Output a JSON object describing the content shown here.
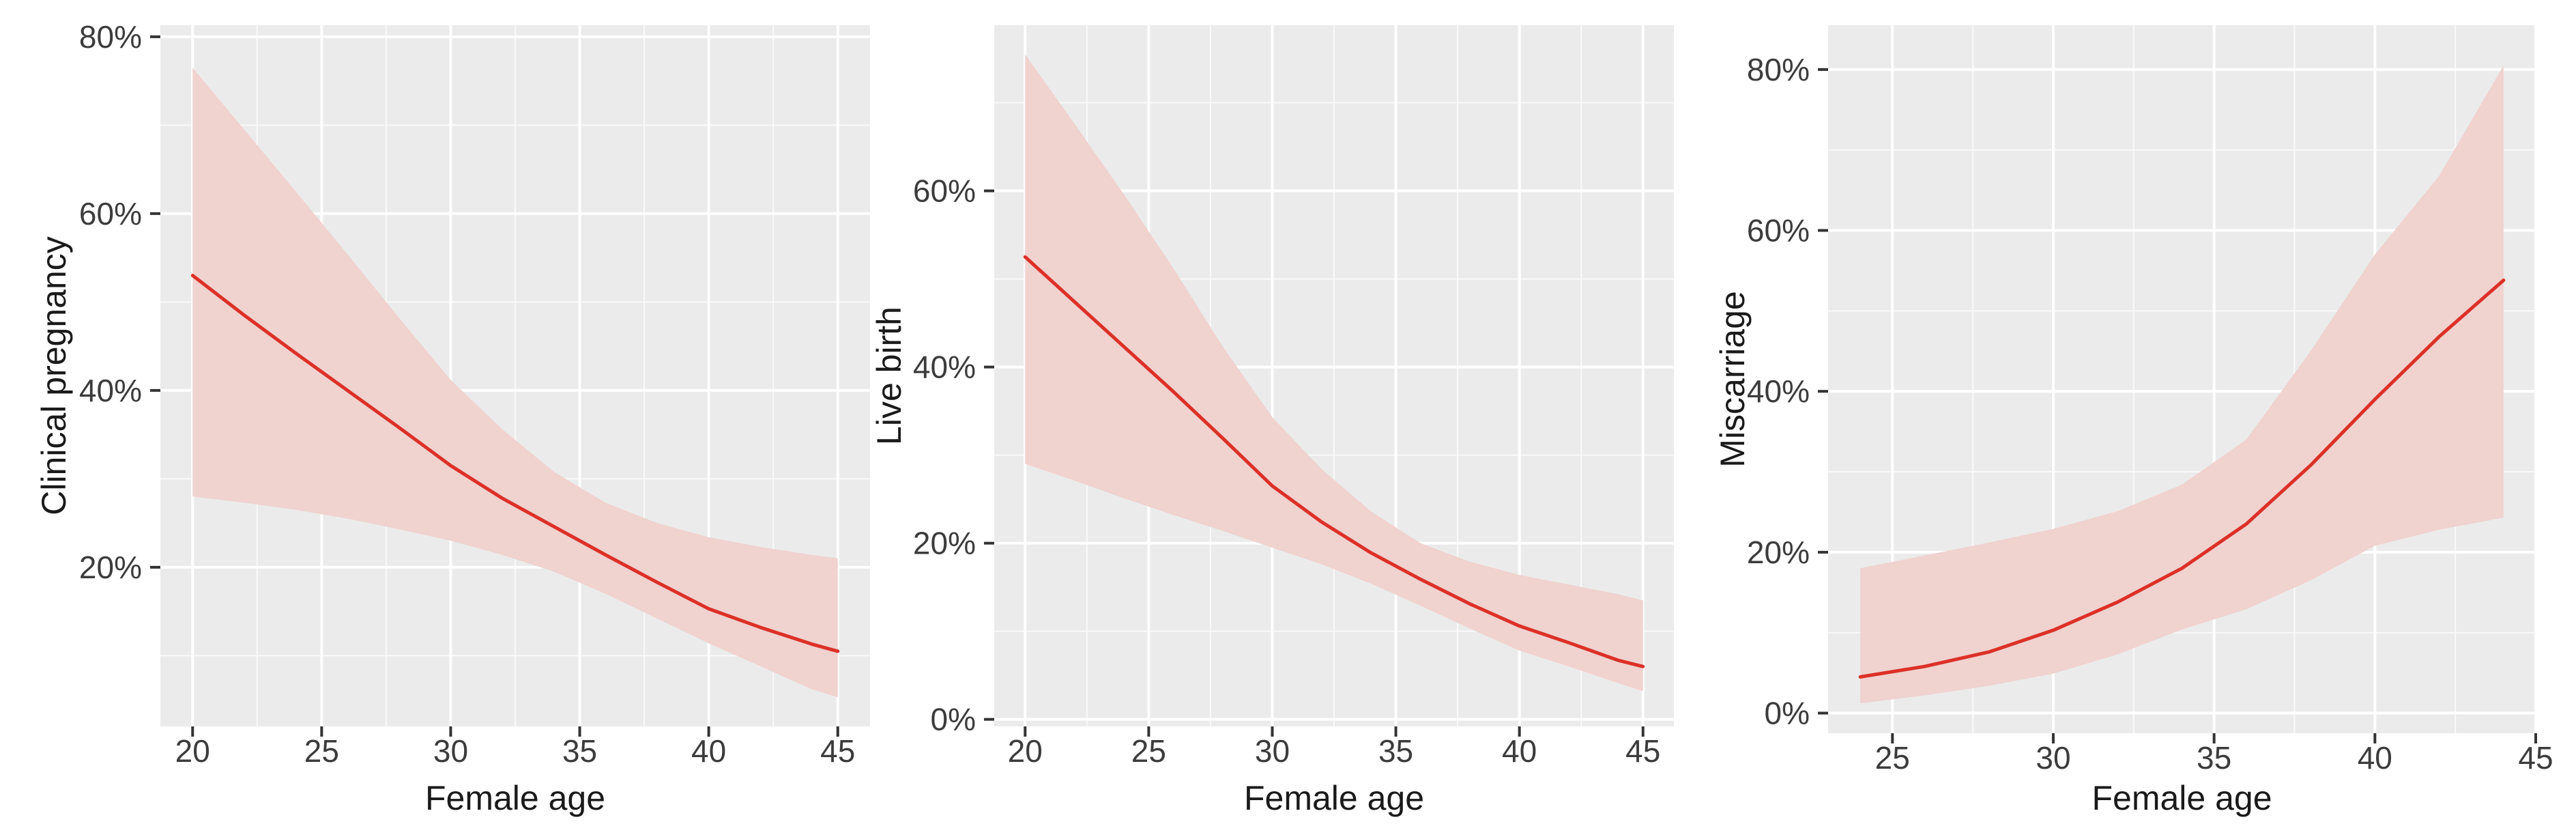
{
  "figure": {
    "description": "Three smoothed regression plots of IVF outcome rates versus female age with 95% confidence ribbons",
    "background": "#ffffff"
  },
  "colors": {
    "panel_bg": "#ebebeb",
    "grid_major": "#ffffff",
    "grid_minor": "#ffffff",
    "line": "#dc3028",
    "ribbon": "#f0d2cf",
    "tick_label": "#3c3c3c",
    "axis_title": "#1a1a1a",
    "tick_mark": "#333333"
  },
  "chart_data": [
    {
      "type": "line",
      "title": "",
      "ylabel": "Clinical pregnancy",
      "xlabel": "Female age",
      "legend": "none",
      "grid": true,
      "xlim": [
        18.75,
        46.25
      ],
      "ylim": [
        2.0,
        81.3
      ],
      "x_ticks": [
        20,
        25,
        30,
        35,
        40,
        45
      ],
      "x_tick_labels": [
        "20",
        "25",
        "30",
        "35",
        "40",
        "45"
      ],
      "y_ticks": [
        20,
        40,
        60,
        80
      ],
      "y_tick_labels": [
        "20%",
        "40%",
        "60%",
        "80%"
      ],
      "x_minor": [
        22.5,
        27.5,
        32.5,
        37.5,
        42.5
      ],
      "y_minor": [
        10,
        30,
        50,
        70
      ],
      "x": [
        20,
        22,
        24,
        26,
        28,
        30,
        32,
        34,
        36,
        38,
        40,
        42,
        44,
        45
      ],
      "series": [
        {
          "name": "fitted rate (%)",
          "values": [
            53,
            48.5,
            44.2,
            40,
            35.8,
            31.5,
            27.8,
            24.6,
            21.4,
            18.3,
            15.3,
            13.2,
            11.3,
            10.5
          ]
        },
        {
          "name": "ci_lower (%)",
          "values": [
            28,
            27.3,
            26.5,
            25.5,
            24.3,
            23,
            21.4,
            19.5,
            17,
            14.2,
            11.4,
            8.8,
            6.2,
            5.3
          ]
        },
        {
          "name": "ci_upper (%)",
          "values": [
            76.5,
            69.5,
            62.5,
            55.4,
            48.2,
            41.2,
            35.6,
            30.8,
            27.3,
            25,
            23.4,
            22.3,
            21.4,
            21
          ]
        }
      ]
    },
    {
      "type": "line",
      "title": "",
      "ylabel": "Live birth",
      "xlabel": "Female age",
      "legend": "none",
      "grid": true,
      "xlim": [
        18.75,
        46.25
      ],
      "ylim": [
        -0.8,
        78.8
      ],
      "x_ticks": [
        20,
        25,
        30,
        35,
        40,
        45
      ],
      "x_tick_labels": [
        "20",
        "25",
        "30",
        "35",
        "40",
        "45"
      ],
      "y_ticks": [
        0,
        20,
        40,
        60
      ],
      "y_tick_labels": [
        "0%",
        "20%",
        "40%",
        "60%"
      ],
      "x_minor": [
        22.5,
        27.5,
        32.5,
        37.5,
        42.5
      ],
      "y_minor": [
        10,
        30,
        50,
        70
      ],
      "x": [
        20,
        22,
        24,
        26,
        28,
        30,
        32,
        34,
        36,
        38,
        40,
        42,
        44,
        45
      ],
      "series": [
        {
          "name": "fitted rate (%)",
          "values": [
            52.5,
            47.4,
            42.3,
            37.2,
            31.9,
            26.5,
            22.4,
            18.9,
            15.9,
            13.1,
            10.6,
            8.7,
            6.7,
            6
          ]
        },
        {
          "name": "ci_lower (%)",
          "values": [
            29,
            27.1,
            25.1,
            23.2,
            21.4,
            19.5,
            17.6,
            15.4,
            12.9,
            10.3,
            7.8,
            6,
            4.1,
            3.2
          ]
        },
        {
          "name": "ci_upper (%)",
          "values": [
            75.5,
            67.6,
            59.6,
            51.2,
            42.3,
            34.3,
            28.4,
            23.6,
            20,
            17.9,
            16.4,
            15.3,
            14.2,
            13.5
          ]
        }
      ]
    },
    {
      "type": "line",
      "title": "",
      "ylabel": "Miscarriage",
      "xlabel": "Female age",
      "legend": "none",
      "grid": true,
      "xlim": [
        23,
        45
      ],
      "ylim": [
        -2.5,
        85.5
      ],
      "x_ticks": [
        25,
        30,
        35,
        40,
        45
      ],
      "x_tick_labels": [
        "25",
        "30",
        "35",
        "40",
        "45"
      ],
      "y_ticks": [
        0,
        20,
        40,
        60,
        80
      ],
      "y_tick_labels": [
        "0%",
        "20%",
        "40%",
        "60%",
        "80%"
      ],
      "x_minor": [
        27.5,
        32.5,
        37.5,
        42.5
      ],
      "y_minor": [
        10,
        30,
        50,
        70
      ],
      "x": [
        24,
        26,
        28,
        30,
        32,
        34,
        36,
        38,
        40,
        42,
        44
      ],
      "series": [
        {
          "name": "fitted rate (%)",
          "values": [
            4.5,
            5.8,
            7.6,
            10.3,
            13.8,
            18,
            23.5,
            30.8,
            39,
            46.8,
            53.8
          ]
        },
        {
          "name": "ci_lower (%)",
          "values": [
            1.2,
            2.2,
            3.4,
            4.9,
            7.3,
            10.4,
            12.9,
            16.5,
            20.8,
            22.8,
            24.3
          ]
        },
        {
          "name": "ci_upper (%)",
          "values": [
            18,
            19.6,
            21.2,
            22.9,
            25.1,
            28.4,
            34,
            45,
            57,
            66.8,
            80.5
          ]
        }
      ]
    }
  ]
}
